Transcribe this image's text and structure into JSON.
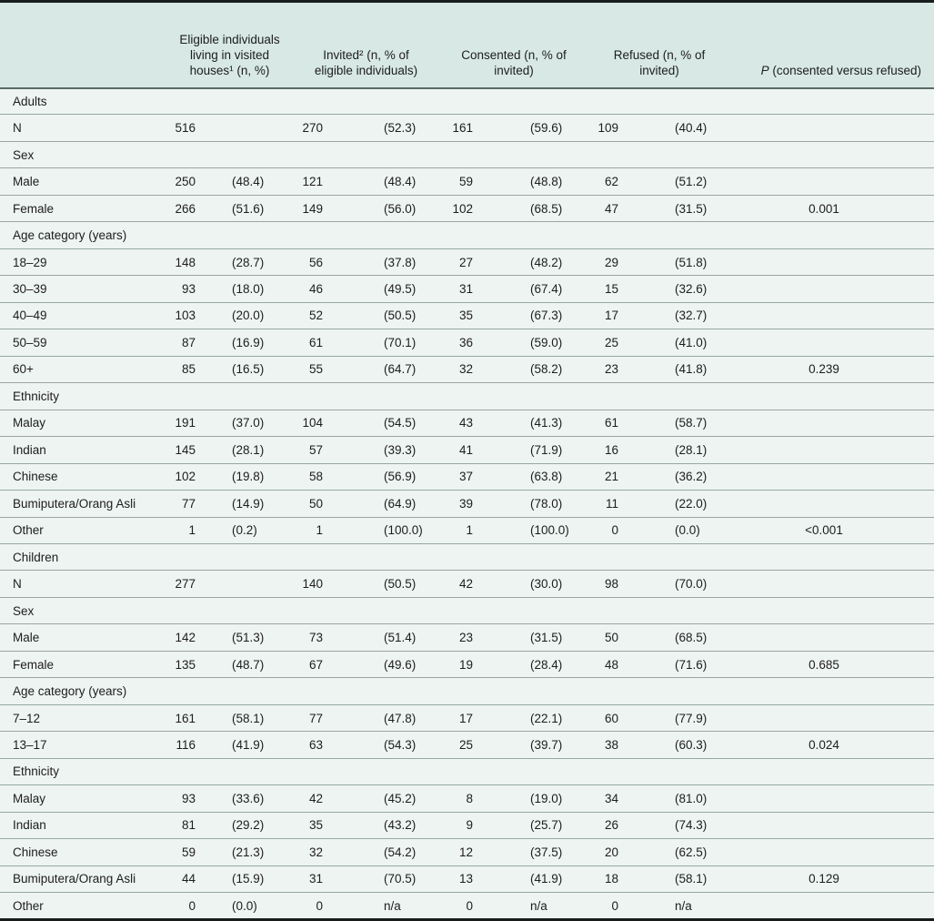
{
  "colors": {
    "header-bg": "#d7e8e5",
    "body-bg": "#eef4f2",
    "row-line": "#97a7a3",
    "frame-line": "#161d1c",
    "text": "#1d1d1d"
  },
  "table": {
    "columns": {
      "row_label": "",
      "eligible": "Eligible individuals living in visited houses¹ (n, %)",
      "invited": "Invited² (n, % of eligible individuals)",
      "consented": "Consented (n, % of invited)",
      "refused": "Refused (n, % of invited)",
      "p_italic": "P",
      "p_rest": " (consented versus refused)"
    },
    "rows": [
      {
        "type": "section",
        "label": "Adults"
      },
      {
        "type": "data",
        "label": "N",
        "cells": [
          "516",
          "",
          "270",
          "(52.3)",
          "161",
          "(59.6)",
          "109",
          "(40.4)",
          ""
        ]
      },
      {
        "type": "section",
        "label": "Sex"
      },
      {
        "type": "data",
        "label": "Male",
        "cells": [
          "250",
          "(48.4)",
          "121",
          "(48.4)",
          "59",
          "(48.8)",
          "62",
          "(51.2)",
          ""
        ]
      },
      {
        "type": "data",
        "label": "Female",
        "cells": [
          "266",
          "(51.6)",
          "149",
          "(56.0)",
          "102",
          "(68.5)",
          "47",
          "(31.5)",
          "0.001"
        ]
      },
      {
        "type": "section",
        "label": "Age category (years)"
      },
      {
        "type": "data",
        "label": "18–29",
        "cells": [
          "148",
          "(28.7)",
          "56",
          "(37.8)",
          "27",
          "(48.2)",
          "29",
          "(51.8)",
          ""
        ]
      },
      {
        "type": "data",
        "label": "30–39",
        "cells": [
          "93",
          "(18.0)",
          "46",
          "(49.5)",
          "31",
          "(67.4)",
          "15",
          "(32.6)",
          ""
        ]
      },
      {
        "type": "data",
        "label": "40–49",
        "cells": [
          "103",
          "(20.0)",
          "52",
          "(50.5)",
          "35",
          "(67.3)",
          "17",
          "(32.7)",
          ""
        ]
      },
      {
        "type": "data",
        "label": "50–59",
        "cells": [
          "87",
          "(16.9)",
          "61",
          "(70.1)",
          "36",
          "(59.0)",
          "25",
          "(41.0)",
          ""
        ]
      },
      {
        "type": "data",
        "label": "60+",
        "cells": [
          "85",
          "(16.5)",
          "55",
          "(64.7)",
          "32",
          "(58.2)",
          "23",
          "(41.8)",
          "0.239"
        ]
      },
      {
        "type": "section",
        "label": "Ethnicity"
      },
      {
        "type": "data",
        "label": "Malay",
        "cells": [
          "191",
          "(37.0)",
          "104",
          "(54.5)",
          "43",
          "(41.3)",
          "61",
          "(58.7)",
          ""
        ]
      },
      {
        "type": "data",
        "label": "Indian",
        "cells": [
          "145",
          "(28.1)",
          "57",
          "(39.3)",
          "41",
          "(71.9)",
          "16",
          "(28.1)",
          ""
        ]
      },
      {
        "type": "data",
        "label": "Chinese",
        "cells": [
          "102",
          "(19.8)",
          "58",
          "(56.9)",
          "37",
          "(63.8)",
          "21",
          "(36.2)",
          ""
        ]
      },
      {
        "type": "data",
        "label": "Bumiputera/Orang Asli",
        "cells": [
          "77",
          "(14.9)",
          "50",
          "(64.9)",
          "39",
          "(78.0)",
          "11",
          "(22.0)",
          ""
        ]
      },
      {
        "type": "data",
        "label": "Other",
        "cells": [
          "1",
          "(0.2)",
          "1",
          "(100.0)",
          "1",
          "(100.0)",
          "0",
          "(0.0)",
          "<0.001"
        ]
      },
      {
        "type": "section",
        "label": "Children"
      },
      {
        "type": "data",
        "label": "N",
        "cells": [
          "277",
          "",
          "140",
          "(50.5)",
          "42",
          "(30.0)",
          "98",
          "(70.0)",
          ""
        ]
      },
      {
        "type": "section",
        "label": "Sex"
      },
      {
        "type": "data",
        "label": "Male",
        "cells": [
          "142",
          "(51.3)",
          "73",
          "(51.4)",
          "23",
          "(31.5)",
          "50",
          "(68.5)",
          ""
        ]
      },
      {
        "type": "data",
        "label": "Female",
        "cells": [
          "135",
          "(48.7)",
          "67",
          "(49.6)",
          "19",
          "(28.4)",
          "48",
          "(71.6)",
          "0.685"
        ]
      },
      {
        "type": "section",
        "label": "Age category (years)"
      },
      {
        "type": "data",
        "label": "7–12",
        "cells": [
          "161",
          "(58.1)",
          "77",
          "(47.8)",
          "17",
          "(22.1)",
          "60",
          "(77.9)",
          ""
        ]
      },
      {
        "type": "data",
        "label": "13–17",
        "cells": [
          "116",
          "(41.9)",
          "63",
          "(54.3)",
          "25",
          "(39.7)",
          "38",
          "(60.3)",
          "0.024"
        ]
      },
      {
        "type": "section",
        "label": "Ethnicity"
      },
      {
        "type": "data",
        "label": "Malay",
        "cells": [
          "93",
          "(33.6)",
          "42",
          "(45.2)",
          "8",
          "(19.0)",
          "34",
          "(81.0)",
          ""
        ]
      },
      {
        "type": "data",
        "label": "Indian",
        "cells": [
          "81",
          "(29.2)",
          "35",
          "(43.2)",
          "9",
          "(25.7)",
          "26",
          "(74.3)",
          ""
        ]
      },
      {
        "type": "data",
        "label": "Chinese",
        "cells": [
          "59",
          "(21.3)",
          "32",
          "(54.2)",
          "12",
          "(37.5)",
          "20",
          "(62.5)",
          ""
        ]
      },
      {
        "type": "data",
        "label": "Bumiputera/Orang Asli",
        "cells": [
          "44",
          "(15.9)",
          "31",
          "(70.5)",
          "13",
          "(41.9)",
          "18",
          "(58.1)",
          "0.129"
        ]
      },
      {
        "type": "data",
        "label": "Other",
        "cells": [
          "0",
          "(0.0)",
          "0",
          "n/a",
          "0",
          "n/a",
          "0",
          "n/a",
          ""
        ]
      }
    ]
  }
}
